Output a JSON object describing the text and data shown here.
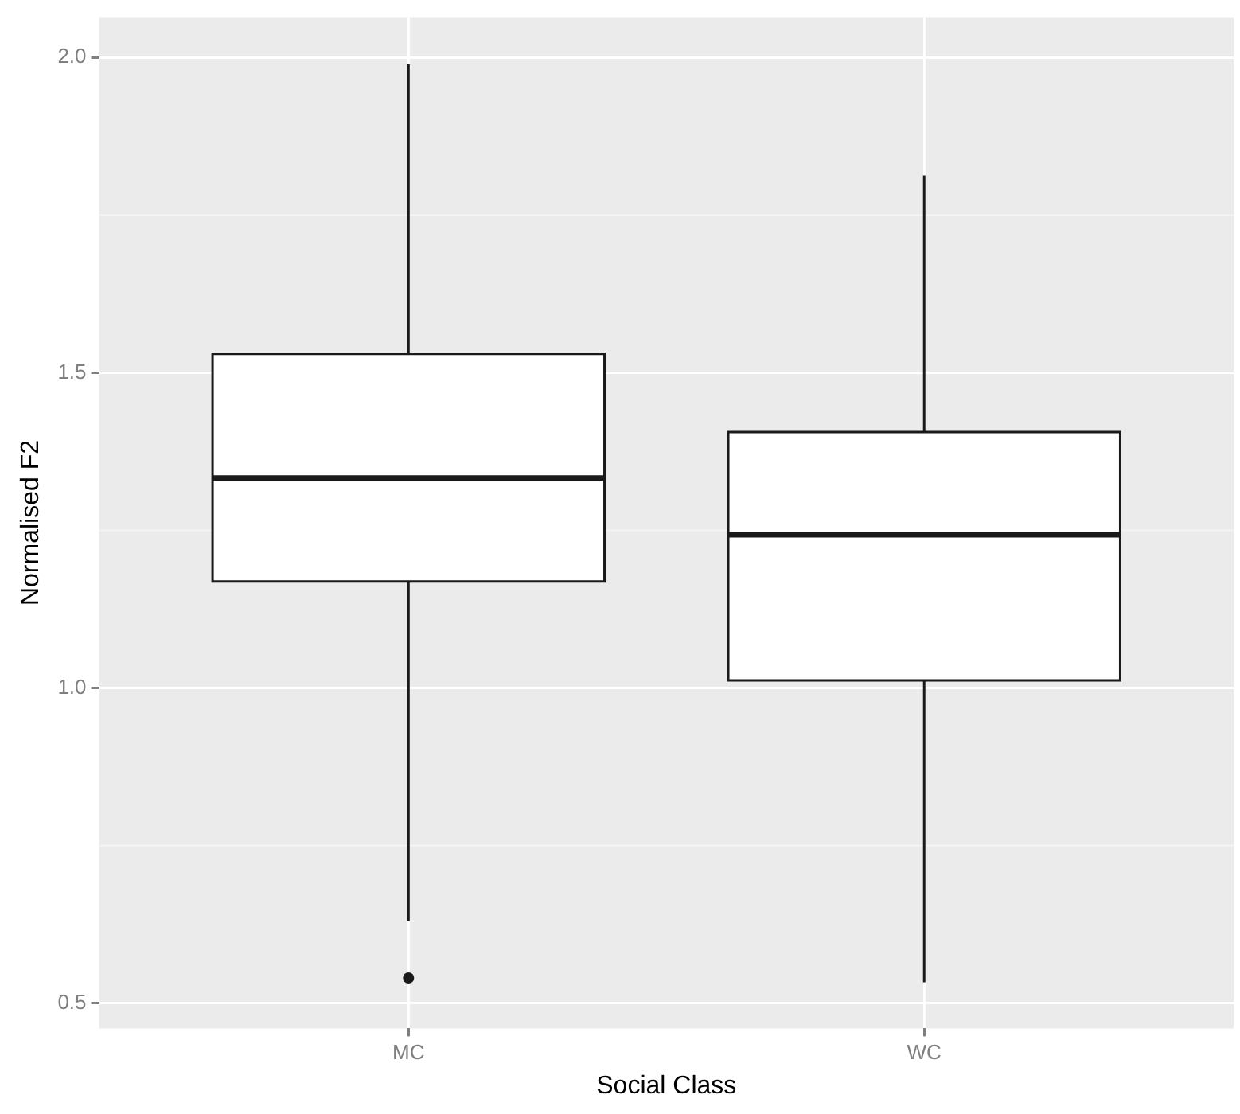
{
  "chart_data": {
    "type": "box",
    "xlabel": "Social Class",
    "ylabel": "Normalised F2",
    "categories": [
      "MC",
      "WC"
    ],
    "boxes": [
      {
        "low": 0.63,
        "q1": 1.169,
        "median": 1.333,
        "q3": 1.53,
        "high": 1.989,
        "outliers": [
          0.54
        ]
      },
      {
        "low": 0.533,
        "q1": 1.012,
        "median": 1.243,
        "q3": 1.406,
        "high": 1.813
      }
    ],
    "ylim": [
      0.46,
      2.064
    ],
    "yticks": [
      0.5,
      {
        "value": 1,
        "label": "1.0"
      },
      1.5,
      {
        "value": 2,
        "label": "2.0"
      }
    ],
    "grid": true
  }
}
